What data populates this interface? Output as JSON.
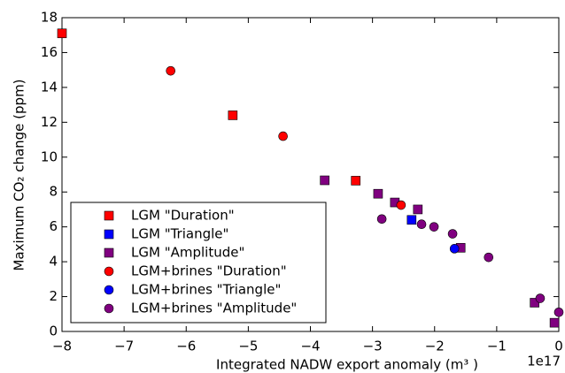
{
  "chart_data": {
    "type": "scatter",
    "xlabel": "Integrated NADW export anomaly (m³ )",
    "ylabel": "Maximum CO₂ change (ppm)",
    "x_offset_label": "1e17",
    "xlim": [
      -8,
      0
    ],
    "ylim": [
      0,
      18
    ],
    "xticks": [
      {
        "value": -8,
        "label": "−8"
      },
      {
        "value": -7,
        "label": "−7"
      },
      {
        "value": -6,
        "label": "−6"
      },
      {
        "value": -5,
        "label": "−5"
      },
      {
        "value": -4,
        "label": "−4"
      },
      {
        "value": -3,
        "label": "−3"
      },
      {
        "value": -2,
        "label": "−2"
      },
      {
        "value": -1,
        "label": "−1"
      },
      0
    ],
    "yticks": [
      0,
      2,
      4,
      6,
      8,
      10,
      12,
      14,
      16,
      18
    ],
    "legend": "lower left",
    "series": [
      {
        "name": "LGM \"Duration\"",
        "color": "#ff0000",
        "marker": "square",
        "x": [
          -8,
          -5.25,
          -3.27
        ],
        "values": [
          17.1,
          12.4,
          8.65
        ]
      },
      {
        "name": "LGM \"Triangle\"",
        "color": "#0000ff",
        "marker": "square",
        "x": [
          -2.37
        ],
        "values": [
          6.4
        ]
      },
      {
        "name": "LGM \"Amplitude\"",
        "color": "#800080",
        "marker": "square",
        "x": [
          -3.77,
          -2.91,
          -2.64,
          -2.27,
          -1.58,
          -0.39,
          -0.07
        ],
        "values": [
          8.67,
          7.9,
          7.4,
          7.0,
          4.8,
          1.65,
          0.5
        ]
      },
      {
        "name": "LGM+brines \"Duration\"",
        "color": "#ff0000",
        "marker": "circle",
        "x": [
          -6.25,
          -4.44,
          -2.54
        ],
        "values": [
          14.95,
          11.2,
          7.25
        ]
      },
      {
        "name": "LGM+brines \"Triangle\"",
        "color": "#0000ff",
        "marker": "circle",
        "x": [
          -1.68
        ],
        "values": [
          4.75
        ]
      },
      {
        "name": "LGM+brines \"Amplitude\"",
        "color": "#800080",
        "marker": "circle",
        "x": [
          -2.85,
          -2.21,
          -2.01,
          -1.71,
          -1.13,
          -0.3,
          0
        ],
        "values": [
          6.45,
          6.15,
          6.0,
          5.6,
          4.25,
          1.9,
          1.1
        ]
      }
    ]
  }
}
